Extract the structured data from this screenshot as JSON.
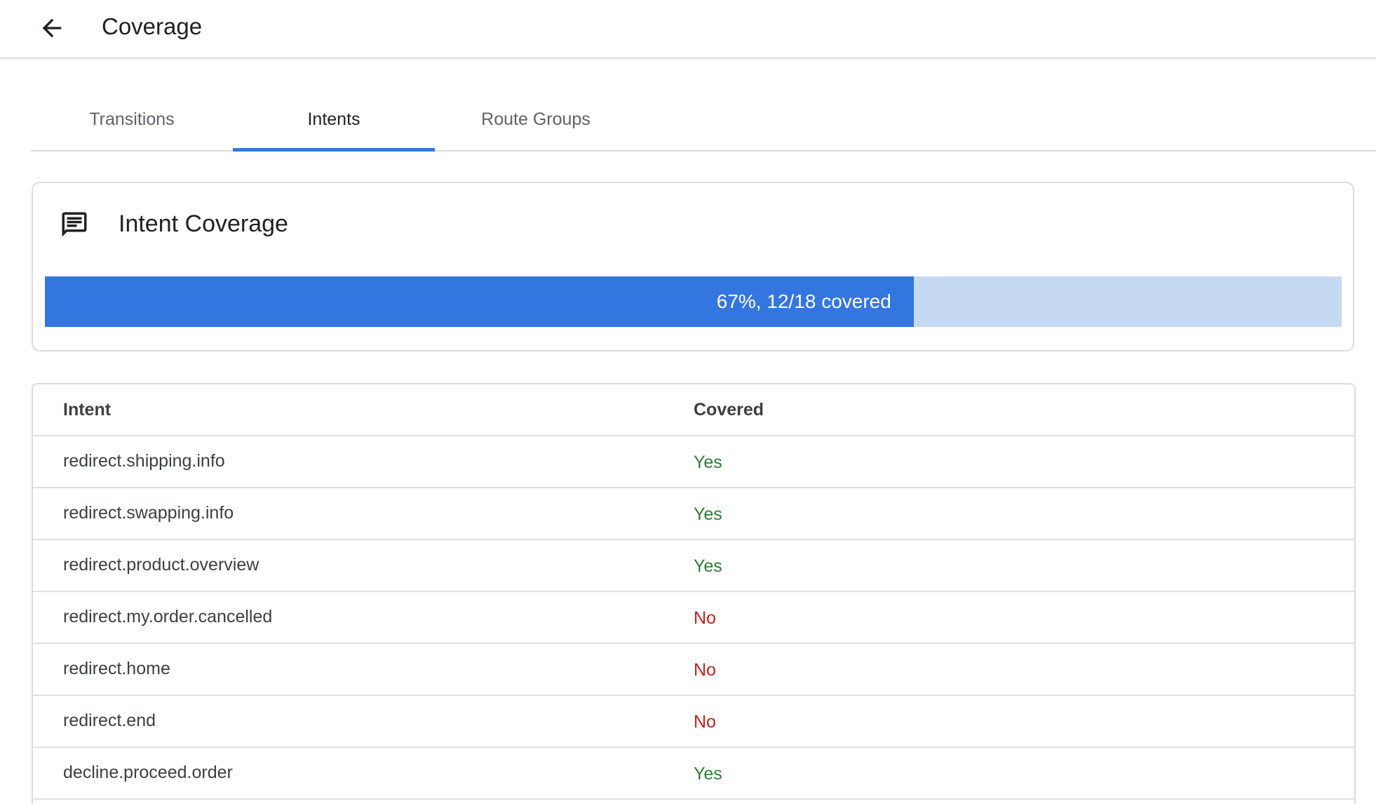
{
  "header": {
    "title": "Coverage",
    "back_icon": "arrow-back-icon"
  },
  "tabs": [
    {
      "label": "Transitions",
      "active": false
    },
    {
      "label": "Intents",
      "active": true
    },
    {
      "label": "Route Groups",
      "active": false
    }
  ],
  "card": {
    "icon": "chat-message-icon",
    "title": "Intent Coverage",
    "progress_percent": 67,
    "progress_label": "67%, 12/18 covered",
    "fill_color": "#3476e0",
    "track_color": "#c5d9f3"
  },
  "table": {
    "headers": [
      "Intent",
      "Covered"
    ],
    "rows": [
      {
        "intent": "redirect.shipping.info",
        "covered": "Yes"
      },
      {
        "intent": "redirect.swapping.info",
        "covered": "Yes"
      },
      {
        "intent": "redirect.product.overview",
        "covered": "Yes"
      },
      {
        "intent": "redirect.my.order.cancelled",
        "covered": "No"
      },
      {
        "intent": "redirect.home",
        "covered": "No"
      },
      {
        "intent": "redirect.end",
        "covered": "No"
      },
      {
        "intent": "decline.proceed.order",
        "covered": "Yes"
      }
    ],
    "colors": {
      "yes": "#2e7d32",
      "no": "#c5221f"
    }
  }
}
